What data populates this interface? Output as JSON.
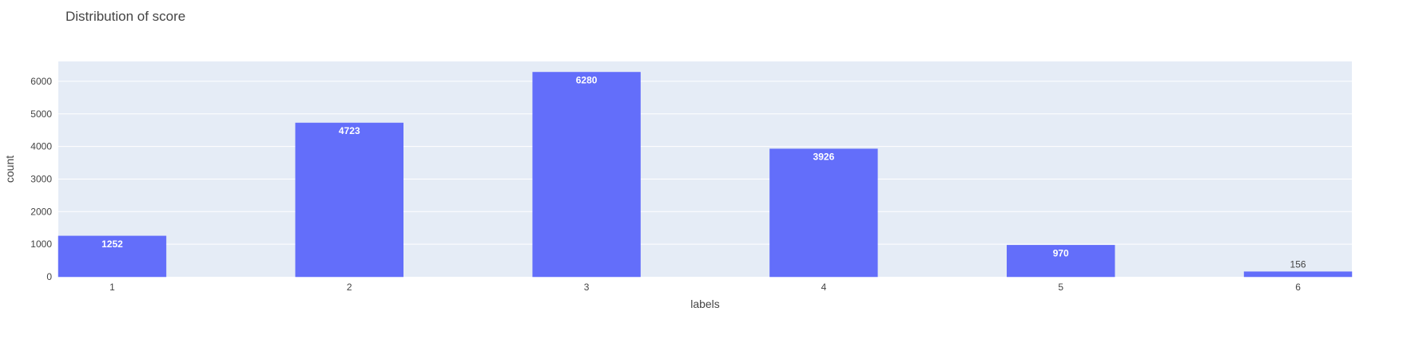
{
  "chart_data": {
    "type": "bar",
    "title": "Distribution of score",
    "xlabel": "labels",
    "ylabel": "count",
    "categories": [
      "1",
      "2",
      "3",
      "4",
      "5",
      "6"
    ],
    "values": [
      1252,
      4723,
      6280,
      3926,
      970,
      156
    ],
    "yticks": [
      0,
      1000,
      2000,
      3000,
      4000,
      5000,
      6000
    ],
    "ylim": [
      0,
      6610
    ],
    "grid": true,
    "bar_color": "#636efa",
    "plot_background": "#e5ecf6",
    "inside_label_color": "#ffffff",
    "outside_label_color": "#444444"
  }
}
